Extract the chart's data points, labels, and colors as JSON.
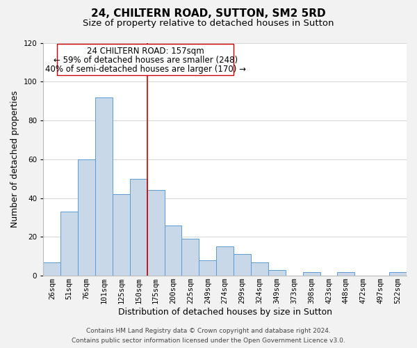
{
  "title": "24, CHILTERN ROAD, SUTTON, SM2 5RD",
  "subtitle": "Size of property relative to detached houses in Sutton",
  "xlabel": "Distribution of detached houses by size in Sutton",
  "ylabel": "Number of detached properties",
  "bar_labels": [
    "26sqm",
    "51sqm",
    "76sqm",
    "101sqm",
    "125sqm",
    "150sqm",
    "175sqm",
    "200sqm",
    "225sqm",
    "249sqm",
    "274sqm",
    "299sqm",
    "324sqm",
    "349sqm",
    "373sqm",
    "398sqm",
    "423sqm",
    "448sqm",
    "472sqm",
    "497sqm",
    "522sqm"
  ],
  "bar_values": [
    7,
    33,
    60,
    92,
    42,
    50,
    44,
    26,
    19,
    8,
    15,
    11,
    7,
    3,
    0,
    2,
    0,
    2,
    0,
    0,
    2
  ],
  "bar_color": "#c8d8e8",
  "bar_edge_color": "#5b9bd5",
  "ylim": [
    0,
    120
  ],
  "yticks": [
    0,
    20,
    40,
    60,
    80,
    100,
    120
  ],
  "vline_x": 5.5,
  "vline_color": "#cc0000",
  "annotation_lines": [
    "24 CHILTERN ROAD: 157sqm",
    "← 59% of detached houses are smaller (248)",
    "40% of semi-detached houses are larger (170) →"
  ],
  "footer_line1": "Contains HM Land Registry data © Crown copyright and database right 2024.",
  "footer_line2": "Contains public sector information licensed under the Open Government Licence v3.0.",
  "title_fontsize": 11,
  "subtitle_fontsize": 9.5,
  "axis_label_fontsize": 9,
  "tick_fontsize": 7.5,
  "annotation_fontsize": 8.5,
  "footer_fontsize": 6.5,
  "background_color": "#f2f2f2"
}
